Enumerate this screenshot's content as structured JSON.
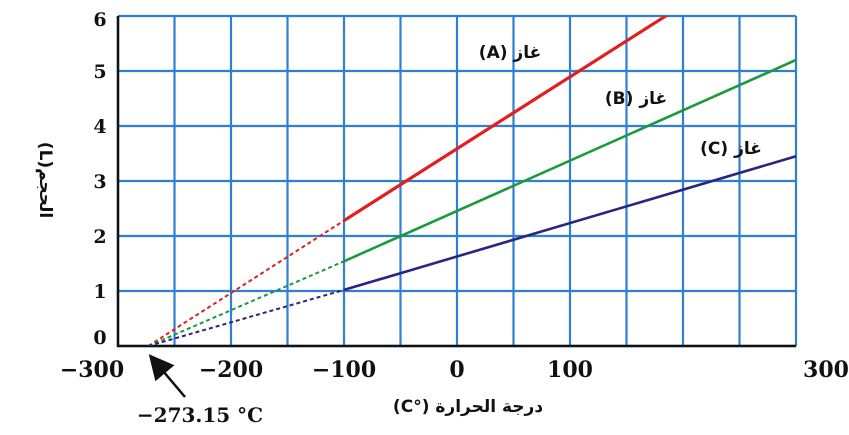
{
  "chart_data": {
    "type": "line",
    "xlabel": "درجة الحرارة (°C)",
    "ylabel": "الحجم(L)",
    "xlim": [
      -300,
      300
    ],
    "ylim": [
      0,
      6
    ],
    "x_tick_labels": [
      "−300",
      "−200",
      "−100",
      "0",
      "100",
      "300"
    ],
    "y_tick_labels": [
      "0",
      "1",
      "2",
      "3",
      "4",
      "5",
      "6"
    ],
    "grid": true,
    "series": [
      {
        "name": "غاز (A)",
        "color": "#e0201f",
        "x": [
          -273.15,
          -100,
          200
        ],
        "y": [
          0,
          2.28,
          6.2
        ]
      },
      {
        "name": "غاز (B)",
        "color": "#1a9a3a",
        "x": [
          -273.15,
          -100,
          300
        ],
        "y": [
          0,
          1.54,
          5.2
        ]
      },
      {
        "name": "غاز (C)",
        "color": "#2a2580",
        "x": [
          -273.15,
          -100,
          300
        ],
        "y": [
          0,
          1.02,
          3.45
        ]
      }
    ],
    "annotation": {
      "text": "−273.15 °C",
      "x": -273.15,
      "y": 0
    }
  }
}
